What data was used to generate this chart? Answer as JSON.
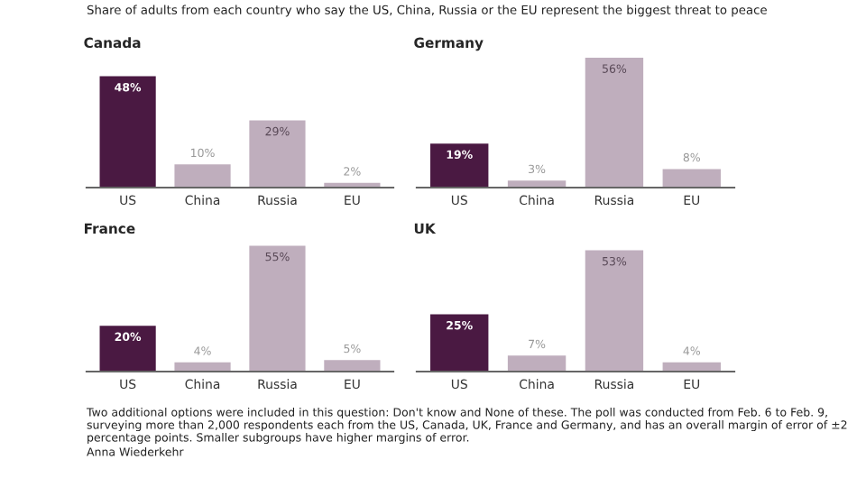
{
  "chart_data": [
    {
      "type": "bar",
      "title": "Canada",
      "annotations": [
        "Share of adults from each country who say the US, China, Russia or the EU represent the biggest threat to peace"
      ],
      "categories": [
        "US",
        "China",
        "Russia",
        "EU"
      ],
      "values": [
        48,
        10,
        29,
        2
      ],
      "colors": [
        "#4a1942",
        "#bfaebd",
        "#bfaebd",
        "#bfaebd"
      ],
      "value_labels": [
        "48%",
        "10%",
        "29%",
        "2%"
      ]
    },
    {
      "type": "bar",
      "title": "Germany",
      "categories": [
        "US",
        "China",
        "Russia",
        "EU"
      ],
      "values": [
        19,
        3,
        56,
        8
      ],
      "colors": [
        "#4a1942",
        "#bfaebd",
        "#bfaebd",
        "#bfaebd"
      ],
      "value_labels": [
        "19%",
        "3%",
        "56%",
        "8%"
      ]
    },
    {
      "type": "bar",
      "title": "France",
      "categories": [
        "US",
        "China",
        "Russia",
        "EU"
      ],
      "values": [
        20,
        4,
        55,
        5
      ],
      "colors": [
        "#4a1942",
        "#bfaebd",
        "#bfaebd",
        "#bfaebd"
      ],
      "value_labels": [
        "20%",
        "4%",
        "55%",
        "5%"
      ]
    },
    {
      "type": "bar",
      "title": "UK",
      "annotations": [
        "Two additional options were included in this question: Don't know and None of these. The poll was conducted from Feb. 6 to Feb. 9, surveying more than 2,000 respondents each from the US, Canada, UK, France and Germany, and has an overall margin of error of ±2 percentage points. Smaller subgroups have higher margins of error.",
        "Anna Wiederkehr"
      ],
      "categories": [
        "US",
        "China",
        "Russia",
        "EU"
      ],
      "values": [
        25,
        7,
        53,
        4
      ],
      "colors": [
        "#4a1942",
        "#bfaebd",
        "#bfaebd",
        "#bfaebd"
      ],
      "value_labels": [
        "25%",
        "7%",
        "53%",
        "4%"
      ]
    }
  ]
}
